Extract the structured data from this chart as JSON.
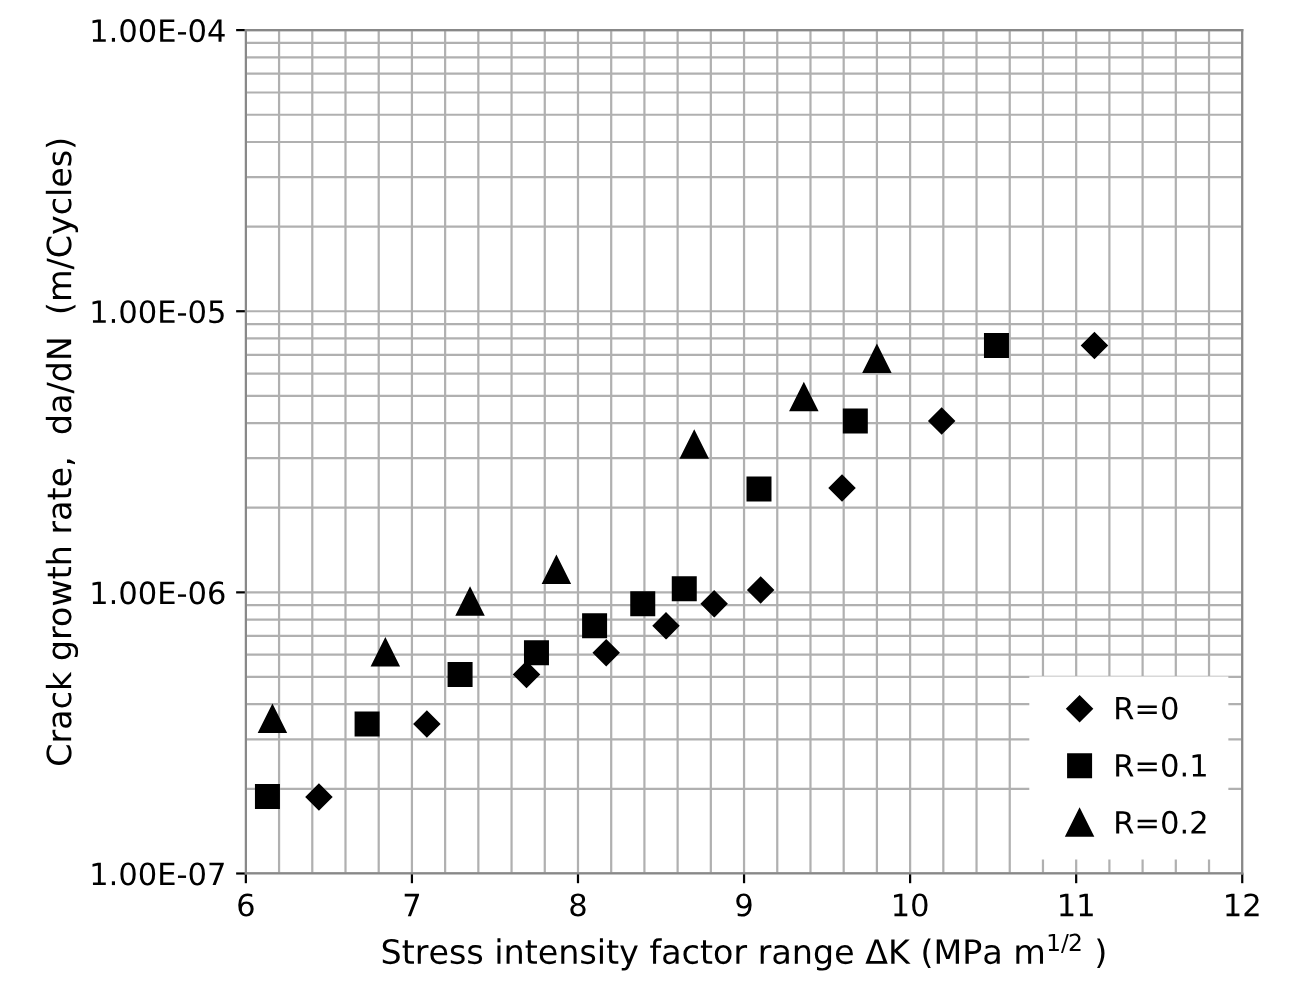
{
  "chart_data": {
    "type": "scatter",
    "xlabel": "Stress intensity factor range ΔK (MPa m$^{1/2}$ )",
    "ylabel": "Crack growth rate,  da/dN  (m/Cycles)",
    "log": "y",
    "xlim": [
      6,
      12
    ],
    "ylim": [
      1e-07,
      0.0001
    ],
    "xticks": [
      6,
      7,
      8,
      9,
      10,
      11,
      12
    ],
    "yticks": [
      {
        "value": 1e-07,
        "label": "1.00E-07"
      },
      {
        "value": 1e-06,
        "label": "1.00E-06"
      },
      {
        "value": 1e-05,
        "label": "1.00E-05"
      },
      {
        "value": 0.0001,
        "label": "1.00E-04"
      }
    ],
    "grid": true,
    "legend": "bottom right",
    "series": [
      {
        "name": "R=0",
        "color": "#000000",
        "marker": "diamond",
        "x": [
          6.44,
          7.09,
          7.69,
          8.17,
          8.53,
          8.82,
          9.1,
          9.59,
          10.19,
          11.11
        ],
        "values": [
          1.87e-07,
          3.4e-07,
          5.1e-07,
          6.1e-07,
          7.6e-07,
          9.1e-07,
          1.02e-06,
          2.35e-06,
          4.07e-06,
          7.55e-06
        ]
      },
      {
        "name": "R=0.1",
        "color": "#000000",
        "marker": "square",
        "x": [
          6.13,
          6.73,
          7.29,
          7.75,
          8.1,
          8.39,
          8.64,
          9.09,
          9.67,
          10.52
        ],
        "values": [
          1.88e-07,
          3.4e-07,
          5.1e-07,
          6.1e-07,
          7.6e-07,
          9.1e-07,
          1.03e-06,
          2.33e-06,
          4.07e-06,
          7.55e-06
        ]
      },
      {
        "name": "R=0.2",
        "color": "#000000",
        "marker": "triangle",
        "x": [
          6.16,
          6.84,
          7.35,
          7.87,
          8.7,
          9.36,
          9.8
        ],
        "values": [
          3.54e-07,
          6.1e-07,
          9.25e-07,
          1.2e-06,
          3.35e-06,
          4.94e-06,
          6.76e-06
        ]
      }
    ]
  }
}
